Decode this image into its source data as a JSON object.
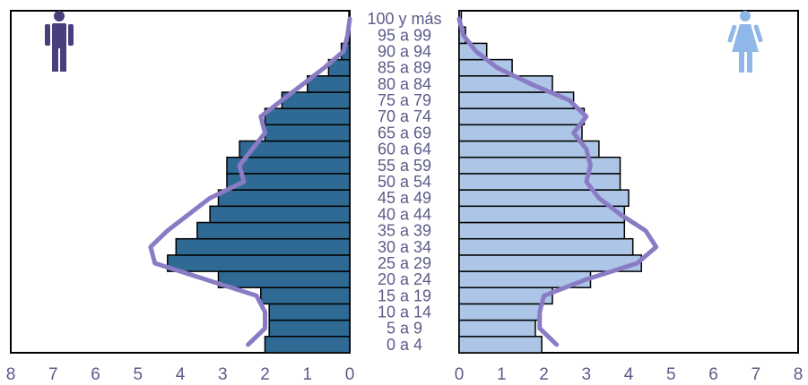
{
  "chart_data": {
    "type": "bar",
    "title": "",
    "xlabel": "",
    "ylabel": "",
    "xlim": [
      0,
      8
    ],
    "x_ticks": [
      "0",
      "1",
      "2",
      "3",
      "4",
      "5",
      "6",
      "7",
      "8"
    ],
    "grid": false,
    "categories": [
      "0 a 4",
      "5 a 9",
      "10 a 14",
      "15 a 19",
      "20 a 24",
      "25 a 29",
      "30 a 34",
      "35 a 39",
      "40 a 44",
      "45 a 49",
      "50 a 54",
      "55 a 59",
      "60 a 64",
      "65 a 69",
      "70 a 74",
      "75 a 79",
      "80 a 84",
      "85 a 89",
      "90 a 94",
      "95 a 99",
      "100 y más"
    ],
    "series": [
      {
        "side": "left",
        "color": "#2f6a94",
        "values": [
          2.0,
          1.9,
          1.9,
          2.1,
          3.1,
          4.3,
          4.1,
          3.6,
          3.3,
          3.1,
          2.9,
          2.9,
          2.6,
          2.0,
          2.0,
          1.6,
          1.0,
          0.5,
          0.2,
          0.05,
          0.02
        ]
      },
      {
        "side": "right",
        "color": "#adc5e6",
        "values": [
          1.95,
          1.8,
          1.9,
          2.2,
          3.1,
          4.3,
          4.1,
          3.9,
          3.9,
          4.0,
          3.8,
          3.8,
          3.3,
          2.9,
          2.95,
          2.7,
          2.2,
          1.25,
          0.65,
          0.15,
          0.05
        ]
      },
      {
        "side": "left",
        "style": "line",
        "color": "#8a7cc4",
        "values": [
          2.4,
          2.0,
          2.0,
          2.2,
          3.4,
          4.6,
          4.7,
          4.3,
          3.8,
          3.3,
          2.5,
          2.6,
          2.3,
          2.0,
          2.1,
          1.6,
          1.1,
          0.6,
          0.15,
          0.05,
          0.0
        ]
      },
      {
        "side": "right",
        "style": "line",
        "color": "#8a7cc4",
        "values": [
          2.3,
          1.9,
          1.9,
          2.0,
          3.0,
          4.2,
          4.65,
          4.4,
          3.8,
          3.3,
          3.0,
          3.1,
          3.0,
          2.7,
          3.0,
          2.6,
          1.7,
          0.9,
          0.4,
          0.1,
          0.0
        ]
      }
    ],
    "icons": {
      "left": "male-figure-icon",
      "right": "female-figure-icon"
    },
    "icon_colors": {
      "left": "#4a3f7c",
      "right": "#8fb8e8"
    }
  }
}
